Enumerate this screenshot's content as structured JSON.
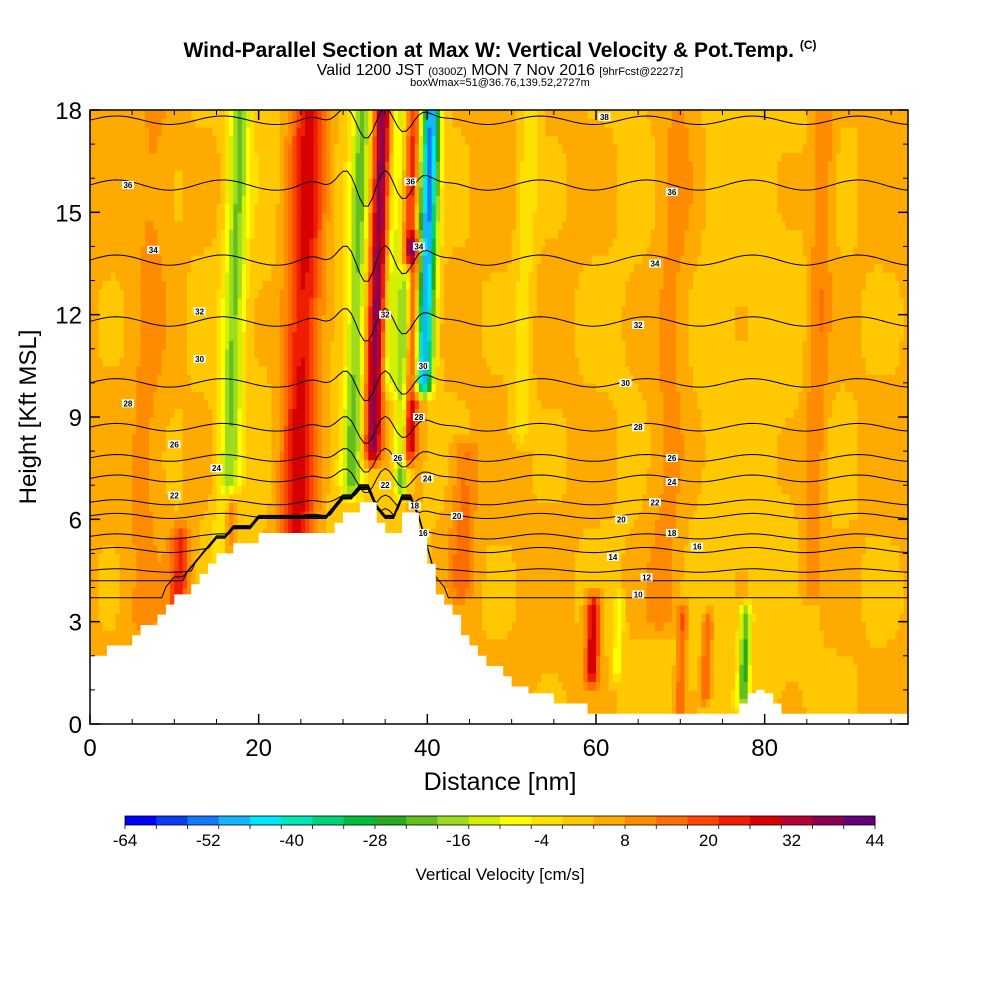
{
  "title": {
    "main": "Wind-Parallel Section at Max W: Vertical Velocity & Pot.Temp.",
    "mark": "(C)",
    "valid_prefix": "Valid 1200 JST",
    "valid_utc": "(0300Z)",
    "valid_date": "MON 7 Nov 2016",
    "forecast": "[9hrFcst@2227z]",
    "box_info": "boxWmax=51@36.76,139.52,2727m"
  },
  "chart_data": {
    "type": "heatmap",
    "xlabel": "Distance [nm]",
    "ylabel": "Height [Kft MSL]",
    "xlim": [
      0,
      97
    ],
    "ylim": [
      0,
      18
    ],
    "x_ticks": [
      "0",
      "20",
      "40",
      "60",
      "80"
    ],
    "y_ticks": [
      "0",
      "3",
      "6",
      "9",
      "12",
      "15",
      "18"
    ],
    "colorbar": {
      "label": "Vertical Velocity [cm/s]",
      "tick_labels": [
        "-64",
        "-52",
        "-40",
        "-28",
        "-16",
        "-4",
        "8",
        "20",
        "32",
        "44"
      ],
      "min": -64,
      "max": 44,
      "colors": [
        "#0000ff",
        "#0a3cf5",
        "#1478ff",
        "#14b4ff",
        "#00e6ff",
        "#00e6b4",
        "#00d278",
        "#00be3c",
        "#28aa1e",
        "#64be1e",
        "#a0dc1e",
        "#d2f000",
        "#ffff00",
        "#ffe100",
        "#ffc800",
        "#ffaa00",
        "#ff8c00",
        "#ff6e00",
        "#ff4600",
        "#f01e00",
        "#d70000",
        "#b40032",
        "#8c0050",
        "#640078"
      ]
    },
    "terrain_profile": [
      [
        0,
        2
      ],
      [
        1,
        2
      ],
      [
        2,
        2.3
      ],
      [
        4,
        2.3
      ],
      [
        5,
        2.6
      ],
      [
        6,
        2.9
      ],
      [
        7,
        2.9
      ],
      [
        8,
        3.2
      ],
      [
        9,
        3.5
      ],
      [
        10,
        3.8
      ],
      [
        11,
        3.8
      ],
      [
        12,
        4.1
      ],
      [
        13,
        4.4
      ],
      [
        14,
        4.7
      ],
      [
        15,
        5
      ],
      [
        16,
        5
      ],
      [
        17,
        5.3
      ],
      [
        18,
        5.3
      ],
      [
        19,
        5.3
      ],
      [
        20,
        5.6
      ],
      [
        21,
        5.6
      ],
      [
        22,
        5.6
      ],
      [
        23,
        5.6
      ],
      [
        24,
        5.6
      ],
      [
        25,
        5.6
      ],
      [
        26,
        5.6
      ],
      [
        27,
        5.6
      ],
      [
        28,
        5.6
      ],
      [
        29,
        5.9
      ],
      [
        30,
        6.2
      ],
      [
        31,
        6.2
      ],
      [
        32,
        6.5
      ],
      [
        33,
        6.5
      ],
      [
        34,
        5.9
      ],
      [
        35,
        5.6
      ],
      [
        36,
        5.6
      ],
      [
        37,
        6.2
      ],
      [
        38,
        6.2
      ],
      [
        39,
        5.6
      ],
      [
        40,
        4.7
      ],
      [
        41,
        3.8
      ],
      [
        42,
        3.5
      ],
      [
        43,
        3.2
      ],
      [
        44,
        2.6
      ],
      [
        45,
        2.3
      ],
      [
        46,
        2
      ],
      [
        47,
        1.7
      ],
      [
        48,
        1.7
      ],
      [
        49,
        1.4
      ],
      [
        50,
        1.1
      ],
      [
        51,
        1.1
      ],
      [
        52,
        0.9
      ],
      [
        53,
        0.9
      ],
      [
        54,
        0.9
      ],
      [
        55,
        0.6
      ],
      [
        56,
        0.6
      ],
      [
        57,
        0.6
      ],
      [
        58,
        0.6
      ],
      [
        59,
        0.3
      ],
      [
        60,
        0.3
      ],
      [
        62,
        0.3
      ],
      [
        64,
        0.3
      ],
      [
        66,
        0.3
      ],
      [
        68,
        0.3
      ],
      [
        70,
        0.3
      ],
      [
        72,
        0.3
      ],
      [
        74,
        0.3
      ],
      [
        76,
        0.3
      ],
      [
        77,
        0.6
      ],
      [
        78,
        0.9
      ],
      [
        79,
        1
      ],
      [
        80,
        0.9
      ],
      [
        81,
        0.6
      ],
      [
        82,
        0.3
      ],
      [
        84,
        0.3
      ],
      [
        86,
        0.3
      ],
      [
        88,
        0.3
      ],
      [
        90,
        0.3
      ],
      [
        92,
        0.3
      ],
      [
        94,
        0.3
      ],
      [
        96,
        0.3
      ],
      [
        97,
        0.3
      ]
    ],
    "velocity_features": [
      {
        "x": 16,
        "y0": 3,
        "y1": 18,
        "w": 1.3,
        "v": -22
      },
      {
        "x": 24.5,
        "y0": 5.5,
        "y1": 18,
        "w": 2.2,
        "v": 26
      },
      {
        "x": 16.5,
        "y0": 5,
        "y1": 6.5,
        "w": 1,
        "v": 26
      },
      {
        "x": 10.5,
        "y0": 3.5,
        "y1": 5.5,
        "w": 1.2,
        "v": 18
      },
      {
        "x": 31,
        "y0": 7,
        "y1": 18,
        "w": 1.2,
        "v": -22
      },
      {
        "x": 33.5,
        "y0": 8,
        "y1": 18,
        "w": 1.1,
        "v": 36
      },
      {
        "x": 35.5,
        "y0": 10,
        "y1": 18,
        "w": 0.9,
        "v": -16
      },
      {
        "x": 36.8,
        "y0": 7,
        "y1": 13,
        "w": 0.8,
        "v": -26
      },
      {
        "x": 37.8,
        "y0": 8,
        "y1": 14,
        "w": 0.9,
        "v": 30
      },
      {
        "x": 39.5,
        "y0": 10,
        "y1": 18,
        "w": 1.1,
        "v": -55
      },
      {
        "x": 38,
        "y0": 14,
        "y1": 18,
        "w": 0.8,
        "v": 20
      },
      {
        "x": 51,
        "y0": 8.5,
        "y1": 18,
        "w": 1.2,
        "v": -8
      },
      {
        "x": 59.5,
        "y0": 1.5,
        "y1": 3.5,
        "w": 0.8,
        "v": 28
      },
      {
        "x": 62.5,
        "y0": 1.5,
        "y1": 3.5,
        "w": 0.6,
        "v": -12
      },
      {
        "x": 70,
        "y0": 0.5,
        "y1": 3.2,
        "w": 0.6,
        "v": 14
      },
      {
        "x": 73,
        "y0": 1,
        "y1": 3,
        "w": 0.6,
        "v": 16
      },
      {
        "x": 77.5,
        "y0": 0.8,
        "y1": 3.2,
        "w": 0.7,
        "v": -26
      },
      {
        "x": 85.5,
        "y0": 4,
        "y1": 18,
        "w": 1.3,
        "v": 9
      },
      {
        "x": 68,
        "y0": 3,
        "y1": 18,
        "w": 2.5,
        "v": 7
      },
      {
        "x": 6,
        "y0": 3,
        "y1": 18,
        "w": 2,
        "v": 5
      },
      {
        "x": 44,
        "y0": 4,
        "y1": 8,
        "w": 1.5,
        "v": 10
      }
    ],
    "theta_contours": [
      {
        "label": "10",
        "base": 3.7,
        "pert": 0
      },
      {
        "label": "12",
        "base": 4.2,
        "pert": 0
      },
      {
        "label": "14",
        "base": 4.5,
        "pert": 0.2
      },
      {
        "label": "16",
        "base": 5.1,
        "pert": 0.3
      },
      {
        "label": "18",
        "base": 5.5,
        "pert": 0.3
      },
      {
        "label": "20",
        "base": 6.1,
        "pert": 0.3
      },
      {
        "label": "22",
        "base": 6.5,
        "pert": 0.3
      },
      {
        "label": "24",
        "base": 7.2,
        "pert": 0.4
      },
      {
        "label": "26",
        "base": 7.8,
        "pert": 0.4
      },
      {
        "label": "28",
        "base": 8.7,
        "pert": 0.45
      },
      {
        "label": "30",
        "base": 10,
        "pert": 0.5
      },
      {
        "label": "32",
        "base": 11.8,
        "pert": 0.55
      },
      {
        "label": "34",
        "base": 13.6,
        "pert": 0.6
      },
      {
        "label": "36",
        "base": 15.8,
        "pert": 0.6
      },
      {
        "label": "38",
        "base": 17.7,
        "pert": 0.5
      }
    ],
    "contour_labels": [
      {
        "text": "36",
        "x": 4.5,
        "y": 15.8
      },
      {
        "text": "34",
        "x": 7.5,
        "y": 13.9
      },
      {
        "text": "32",
        "x": 13,
        "y": 12.1
      },
      {
        "text": "30",
        "x": 13,
        "y": 10.7
      },
      {
        "text": "28",
        "x": 4.5,
        "y": 9.4
      },
      {
        "text": "26",
        "x": 10,
        "y": 8.2
      },
      {
        "text": "24",
        "x": 15,
        "y": 7.5
      },
      {
        "text": "22",
        "x": 10,
        "y": 6.7
      },
      {
        "text": "38",
        "x": 61,
        "y": 17.8
      },
      {
        "text": "36",
        "x": 38,
        "y": 15.9
      },
      {
        "text": "34",
        "x": 39,
        "y": 14
      },
      {
        "text": "32",
        "x": 35,
        "y": 12
      },
      {
        "text": "30",
        "x": 39.5,
        "y": 10.5
      },
      {
        "text": "28",
        "x": 39,
        "y": 9
      },
      {
        "text": "26",
        "x": 36.5,
        "y": 7.8
      },
      {
        "text": "22",
        "x": 35,
        "y": 7
      },
      {
        "text": "24",
        "x": 40,
        "y": 7.2
      },
      {
        "text": "18",
        "x": 38.5,
        "y": 6.4
      },
      {
        "text": "16",
        "x": 39.5,
        "y": 5.6
      },
      {
        "text": "20",
        "x": 43.5,
        "y": 6.1
      },
      {
        "text": "36",
        "x": 69,
        "y": 15.6
      },
      {
        "text": "34",
        "x": 67,
        "y": 13.5
      },
      {
        "text": "32",
        "x": 65,
        "y": 11.7
      },
      {
        "text": "30",
        "x": 63.5,
        "y": 10
      },
      {
        "text": "28",
        "x": 65,
        "y": 8.7
      },
      {
        "text": "26",
        "x": 69,
        "y": 7.8
      },
      {
        "text": "24",
        "x": 69,
        "y": 7.1
      },
      {
        "text": "22",
        "x": 67,
        "y": 6.5
      },
      {
        "text": "20",
        "x": 63,
        "y": 6
      },
      {
        "text": "18",
        "x": 69,
        "y": 5.6
      },
      {
        "text": "16",
        "x": 72,
        "y": 5.2
      },
      {
        "text": "14",
        "x": 62,
        "y": 4.9
      },
      {
        "text": "12",
        "x": 66,
        "y": 4.3
      },
      {
        "text": "10",
        "x": 65,
        "y": 3.8
      }
    ]
  }
}
